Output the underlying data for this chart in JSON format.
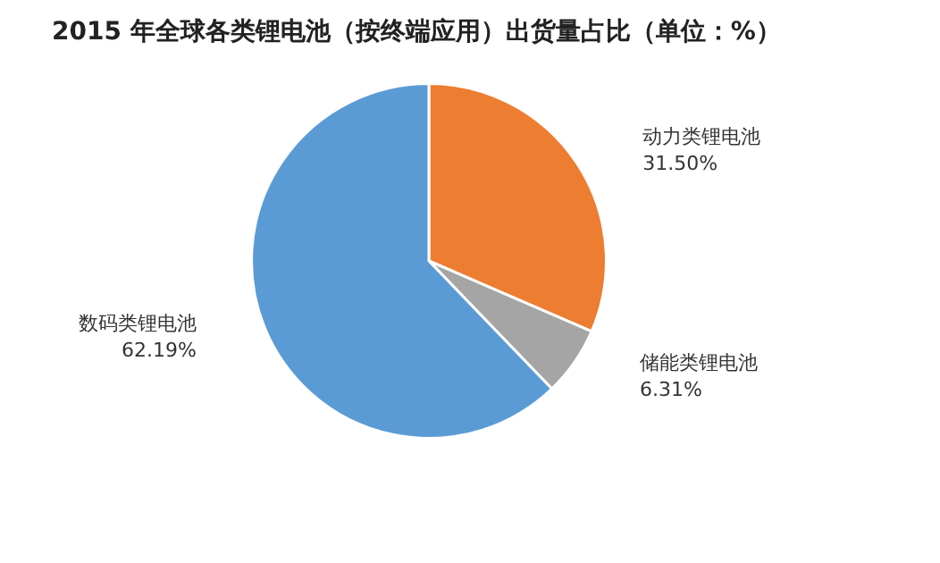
{
  "chart_data": {
    "type": "pie",
    "title": "2015 年全球各类锂电池（按终端应用）出货量占比（单位：%）",
    "categories": [
      "动力类锂电池",
      "储能类锂电池",
      "数码类锂电池"
    ],
    "values": [
      31.5,
      6.31,
      62.19
    ],
    "value_labels": [
      "31.50%",
      "6.31%",
      "62.19%"
    ],
    "colors": [
      "#ed7d31",
      "#a5a5a5",
      "#5b9bd5"
    ],
    "legend": false
  }
}
